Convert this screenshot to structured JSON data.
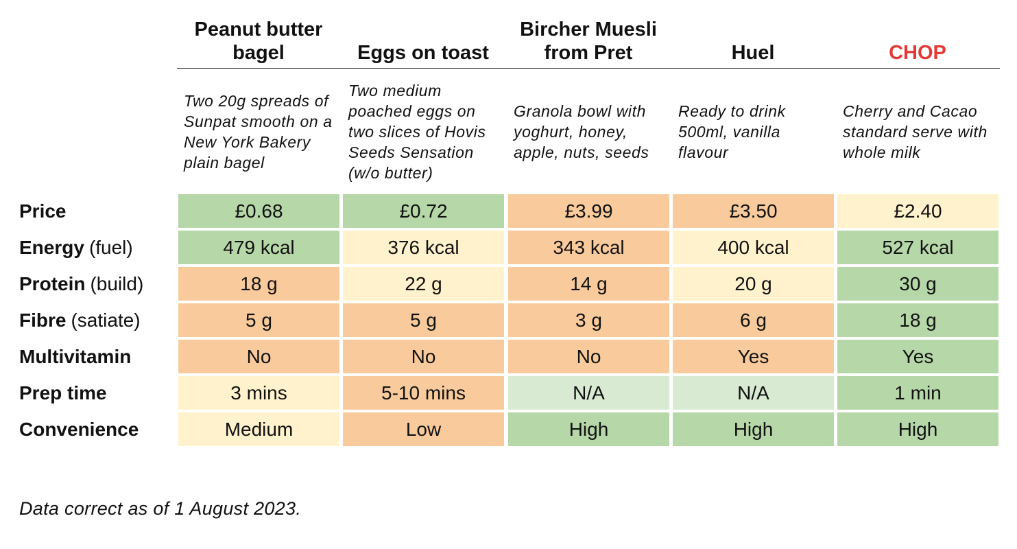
{
  "chart_data": {
    "type": "table",
    "columns": [
      {
        "name": "Peanut butter bagel",
        "description": "Two 20g spreads of Sunpat smooth on a New York Bakery plain bagel"
      },
      {
        "name": "Eggs on toast",
        "description": "Two medium poached eggs on two slices of Hovis Seeds Sensation (w/o butter)"
      },
      {
        "name": "Bircher Muesli from Pret",
        "description": "Granola bowl with yoghurt, honey, apple, nuts, seeds"
      },
      {
        "name": "Huel",
        "description": "Ready to drink 500ml, vanilla flavour"
      },
      {
        "name": "CHOP",
        "description": "Cherry and Cacao standard serve with whole milk",
        "highlight_color": "#e53935"
      }
    ],
    "rows": [
      {
        "label": "Price",
        "sublabel": "",
        "values": [
          "£0.68",
          "£0.72",
          "£3.99",
          "£3.50",
          "£2.40"
        ],
        "ratings": [
          "good",
          "good",
          "bad",
          "bad",
          "mid"
        ]
      },
      {
        "label": "Energy",
        "sublabel": "(fuel)",
        "values": [
          "479 kcal",
          "376 kcal",
          "343 kcal",
          "400 kcal",
          "527 kcal"
        ],
        "ratings": [
          "good",
          "mid",
          "bad",
          "mid",
          "good"
        ]
      },
      {
        "label": "Protein",
        "sublabel": "(build)",
        "values": [
          "18 g",
          "22 g",
          "14 g",
          "20 g",
          "30 g"
        ],
        "ratings": [
          "bad",
          "mid",
          "bad",
          "mid",
          "good"
        ]
      },
      {
        "label": "Fibre",
        "sublabel": "(satiate)",
        "values": [
          "5 g",
          "5 g",
          "3 g",
          "6 g",
          "18 g"
        ],
        "ratings": [
          "bad",
          "bad",
          "bad",
          "bad",
          "good"
        ]
      },
      {
        "label": "Multivitamin",
        "sublabel": "",
        "values": [
          "No",
          "No",
          "No",
          "Yes",
          "Yes"
        ],
        "ratings": [
          "bad",
          "bad",
          "bad",
          "bad",
          "good"
        ]
      },
      {
        "label": "Prep time",
        "sublabel": "",
        "values": [
          "3 mins",
          "5-10 mins",
          "N/A",
          "N/A",
          "1 min"
        ],
        "ratings": [
          "mid",
          "bad",
          "na",
          "na",
          "good"
        ]
      },
      {
        "label": "Convenience",
        "sublabel": "",
        "values": [
          "Medium",
          "Low",
          "High",
          "High",
          "High"
        ],
        "ratings": [
          "mid",
          "bad",
          "good",
          "good",
          "good"
        ]
      }
    ],
    "rating_colors": {
      "good": "#b6d7a8",
      "mid": "#fff2cc",
      "bad": "#f9cb9c",
      "na": "#d9ead3"
    },
    "footnote": "Data correct as of 1 August 2023."
  }
}
